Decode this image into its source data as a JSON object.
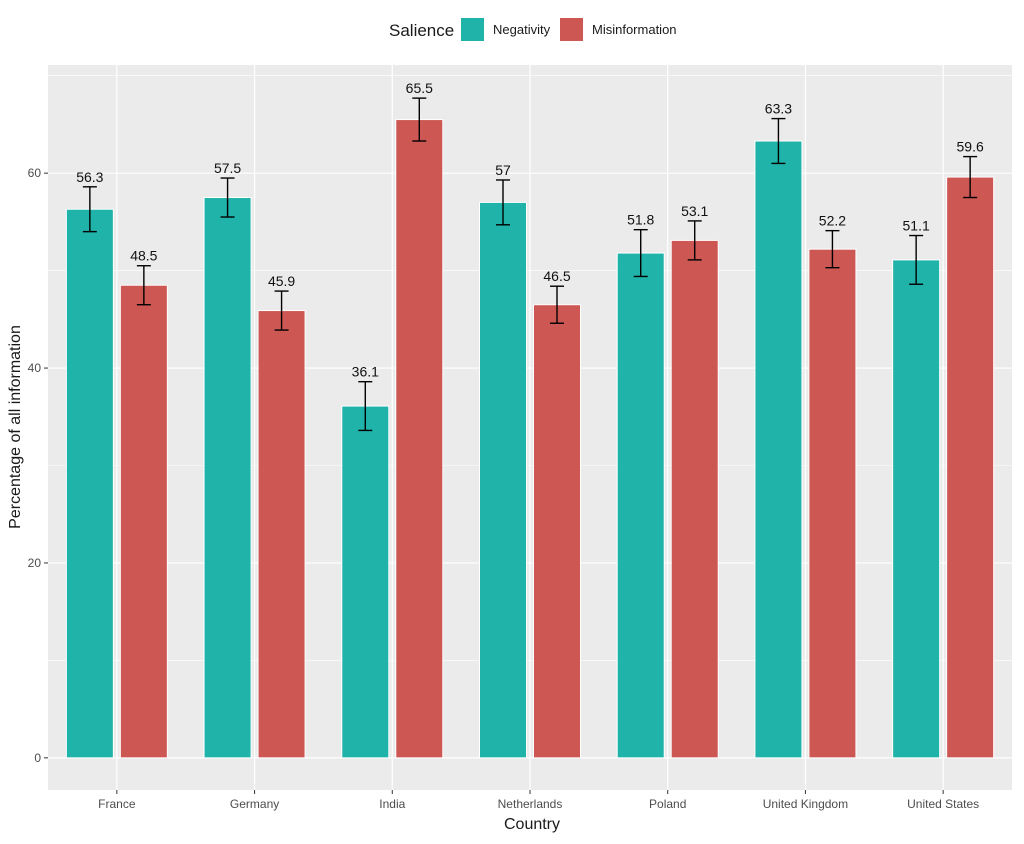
{
  "chart_data": {
    "type": "bar",
    "title": "",
    "xlabel": "Country",
    "ylabel": "Percentage of all information",
    "ylim": [
      -3.3,
      71.1
    ],
    "yticks": [
      0,
      20,
      40,
      60
    ],
    "grid": true,
    "legend": {
      "position": "top",
      "title": "Salience"
    },
    "categories": [
      "France",
      "Germany",
      "India",
      "Netherlands",
      "Poland",
      "United Kingdom",
      "United States"
    ],
    "series": [
      {
        "name": "Negativity",
        "color": "#20B3AA",
        "values": [
          56.3,
          57.5,
          36.1,
          57,
          51.8,
          63.3,
          51.1
        ],
        "error": [
          2.3,
          2.0,
          2.5,
          2.3,
          2.4,
          2.3,
          2.5
        ]
      },
      {
        "name": "Misinformation",
        "color": "#CD5753",
        "values": [
          48.5,
          45.9,
          65.5,
          46.5,
          53.1,
          52.2,
          59.6
        ],
        "error": [
          2.0,
          2.0,
          2.2,
          1.9,
          2.0,
          1.9,
          2.1
        ]
      }
    ]
  }
}
